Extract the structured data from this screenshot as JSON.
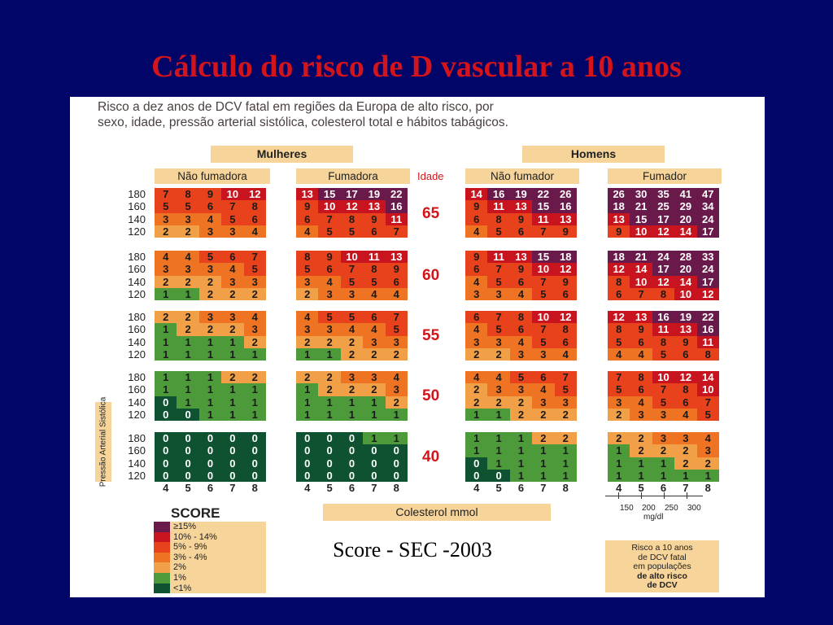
{
  "title": "Cálculo do risco de D vascular a 10 anos",
  "description_line1": "Risco a dez anos de DCV fatal em regiões da Europa de alto risco, por",
  "description_line2": "sexo, idade, pressão arterial sistólica, colesterol total e hábitos tabágicos.",
  "header_women": "Mulheres",
  "header_men": "Homens",
  "sub_nonsmoker_f": "Não fumadora",
  "sub_smoker_f": "Fumadora",
  "sub_nonsmoker_m": "Não fumador",
  "sub_smoker_m": "Fumador",
  "idade_label": "Idade",
  "ages": [
    "65",
    "60",
    "55",
    "50",
    "40"
  ],
  "bp_values": [
    "180",
    "160",
    "140",
    "120"
  ],
  "cholesterol_values": [
    "4",
    "5",
    "6",
    "7",
    "8"
  ],
  "bp_axis_label": "Pressão Arterial Sistólica",
  "cholesterol_label": "Colesterol mmol",
  "mgdl_values": [
    "150",
    "200",
    "250",
    "300"
  ],
  "mgdl_unit": "mg/dl",
  "score_title": "SCORE",
  "legend": [
    {
      "label": "≥15%",
      "color": "#6a1a4a"
    },
    {
      "label": "10% - 14%",
      "color": "#c8141e"
    },
    {
      "label": "5% - 9%",
      "color": "#e8421c"
    },
    {
      "label": "3% - 4%",
      "color": "#ee7424"
    },
    {
      "label": "2%",
      "color": "#f2a048"
    },
    {
      "label": "1%",
      "color": "#4c9a3a"
    },
    {
      "label": "<1%",
      "color": "#0f5232"
    }
  ],
  "caption": "Score - SEC -2003",
  "risk_box": [
    "Risco a 10 anos",
    "de DCV fatal",
    "em populações",
    "de alto risco",
    "de DCV"
  ],
  "chart_data": {
    "type": "heatmap",
    "title": "Cálculo do risco de D vascular a 10 anos",
    "x_label": "Colesterol mmol",
    "y_label": "Pressão Arterial Sistólica",
    "x_values": [
      4,
      5,
      6,
      7,
      8
    ],
    "y_values": [
      180,
      160,
      140,
      120
    ],
    "ages": [
      65,
      60,
      55,
      50,
      40
    ],
    "groups": [
      "Mulheres - Não fumadora",
      "Mulheres - Fumadora",
      "Homens - Não fumador",
      "Homens - Fumador"
    ],
    "values": [
      [
        [
          [
            7,
            8,
            9,
            10,
            12
          ],
          [
            5,
            5,
            6,
            7,
            8
          ],
          [
            3,
            3,
            4,
            5,
            6
          ],
          [
            2,
            2,
            3,
            3,
            4
          ]
        ],
        [
          [
            13,
            15,
            17,
            19,
            22
          ],
          [
            9,
            10,
            12,
            13,
            16
          ],
          [
            6,
            7,
            8,
            9,
            11
          ],
          [
            4,
            5,
            5,
            6,
            7
          ]
        ],
        [
          [
            14,
            16,
            19,
            22,
            26
          ],
          [
            9,
            11,
            13,
            15,
            16
          ],
          [
            6,
            8,
            9,
            11,
            13
          ],
          [
            4,
            5,
            6,
            7,
            9
          ]
        ],
        [
          [
            26,
            30,
            35,
            41,
            47
          ],
          [
            18,
            21,
            25,
            29,
            34
          ],
          [
            13,
            15,
            17,
            20,
            24
          ],
          [
            9,
            10,
            12,
            14,
            17
          ]
        ]
      ],
      [
        [
          [
            4,
            4,
            5,
            6,
            7
          ],
          [
            3,
            3,
            3,
            4,
            5
          ],
          [
            2,
            2,
            2,
            3,
            3
          ],
          [
            1,
            1,
            2,
            2,
            2
          ]
        ],
        [
          [
            8,
            9,
            10,
            11,
            13
          ],
          [
            5,
            6,
            7,
            8,
            9
          ],
          [
            3,
            4,
            5,
            5,
            6
          ],
          [
            2,
            3,
            3,
            4,
            4
          ]
        ],
        [
          [
            9,
            11,
            13,
            15,
            18
          ],
          [
            6,
            7,
            9,
            10,
            12
          ],
          [
            4,
            5,
            6,
            7,
            9
          ],
          [
            3,
            3,
            4,
            5,
            6
          ]
        ],
        [
          [
            18,
            21,
            24,
            28,
            33
          ],
          [
            12,
            14,
            17,
            20,
            24
          ],
          [
            8,
            10,
            12,
            14,
            17
          ],
          [
            6,
            7,
            8,
            10,
            12
          ]
        ]
      ],
      [
        [
          [
            2,
            2,
            3,
            3,
            4
          ],
          [
            1,
            2,
            2,
            2,
            3
          ],
          [
            1,
            1,
            1,
            1,
            2
          ],
          [
            1,
            1,
            1,
            1,
            1
          ]
        ],
        [
          [
            4,
            5,
            5,
            6,
            7
          ],
          [
            3,
            3,
            4,
            4,
            5
          ],
          [
            2,
            2,
            2,
            3,
            3
          ],
          [
            1,
            1,
            2,
            2,
            2
          ]
        ],
        [
          [
            6,
            7,
            8,
            10,
            12
          ],
          [
            4,
            5,
            6,
            7,
            8
          ],
          [
            3,
            3,
            4,
            5,
            6
          ],
          [
            2,
            2,
            3,
            3,
            4
          ]
        ],
        [
          [
            12,
            13,
            16,
            19,
            22
          ],
          [
            8,
            9,
            11,
            13,
            16
          ],
          [
            5,
            6,
            8,
            9,
            11
          ],
          [
            4,
            4,
            5,
            6,
            8
          ]
        ]
      ],
      [
        [
          [
            1,
            1,
            1,
            2,
            2
          ],
          [
            1,
            1,
            1,
            1,
            1
          ],
          [
            0,
            1,
            1,
            1,
            1
          ],
          [
            0,
            0,
            1,
            1,
            1
          ]
        ],
        [
          [
            2,
            2,
            3,
            3,
            4
          ],
          [
            1,
            2,
            2,
            2,
            3
          ],
          [
            1,
            1,
            1,
            1,
            2
          ],
          [
            1,
            1,
            1,
            1,
            1
          ]
        ],
        [
          [
            4,
            4,
            5,
            6,
            7
          ],
          [
            2,
            3,
            3,
            4,
            5
          ],
          [
            2,
            2,
            2,
            3,
            3
          ],
          [
            1,
            1,
            2,
            2,
            2
          ]
        ],
        [
          [
            7,
            8,
            10,
            12,
            14
          ],
          [
            5,
            6,
            7,
            8,
            10
          ],
          [
            3,
            4,
            5,
            6,
            7
          ],
          [
            2,
            3,
            3,
            4,
            5
          ]
        ]
      ],
      [
        [
          [
            0,
            0,
            0,
            0,
            0
          ],
          [
            0,
            0,
            0,
            0,
            0
          ],
          [
            0,
            0,
            0,
            0,
            0
          ],
          [
            0,
            0,
            0,
            0,
            0
          ]
        ],
        [
          [
            0,
            0,
            0,
            1,
            1
          ],
          [
            0,
            0,
            0,
            0,
            0
          ],
          [
            0,
            0,
            0,
            0,
            0
          ],
          [
            0,
            0,
            0,
            0,
            0
          ]
        ],
        [
          [
            1,
            1,
            1,
            2,
            2
          ],
          [
            1,
            1,
            1,
            1,
            1
          ],
          [
            0,
            1,
            1,
            1,
            1
          ],
          [
            0,
            0,
            1,
            1,
            1
          ]
        ],
        [
          [
            2,
            2,
            3,
            3,
            4
          ],
          [
            1,
            2,
            2,
            2,
            3
          ],
          [
            1,
            1,
            1,
            2,
            2
          ],
          [
            1,
            1,
            1,
            1,
            1
          ]
        ]
      ]
    ]
  }
}
